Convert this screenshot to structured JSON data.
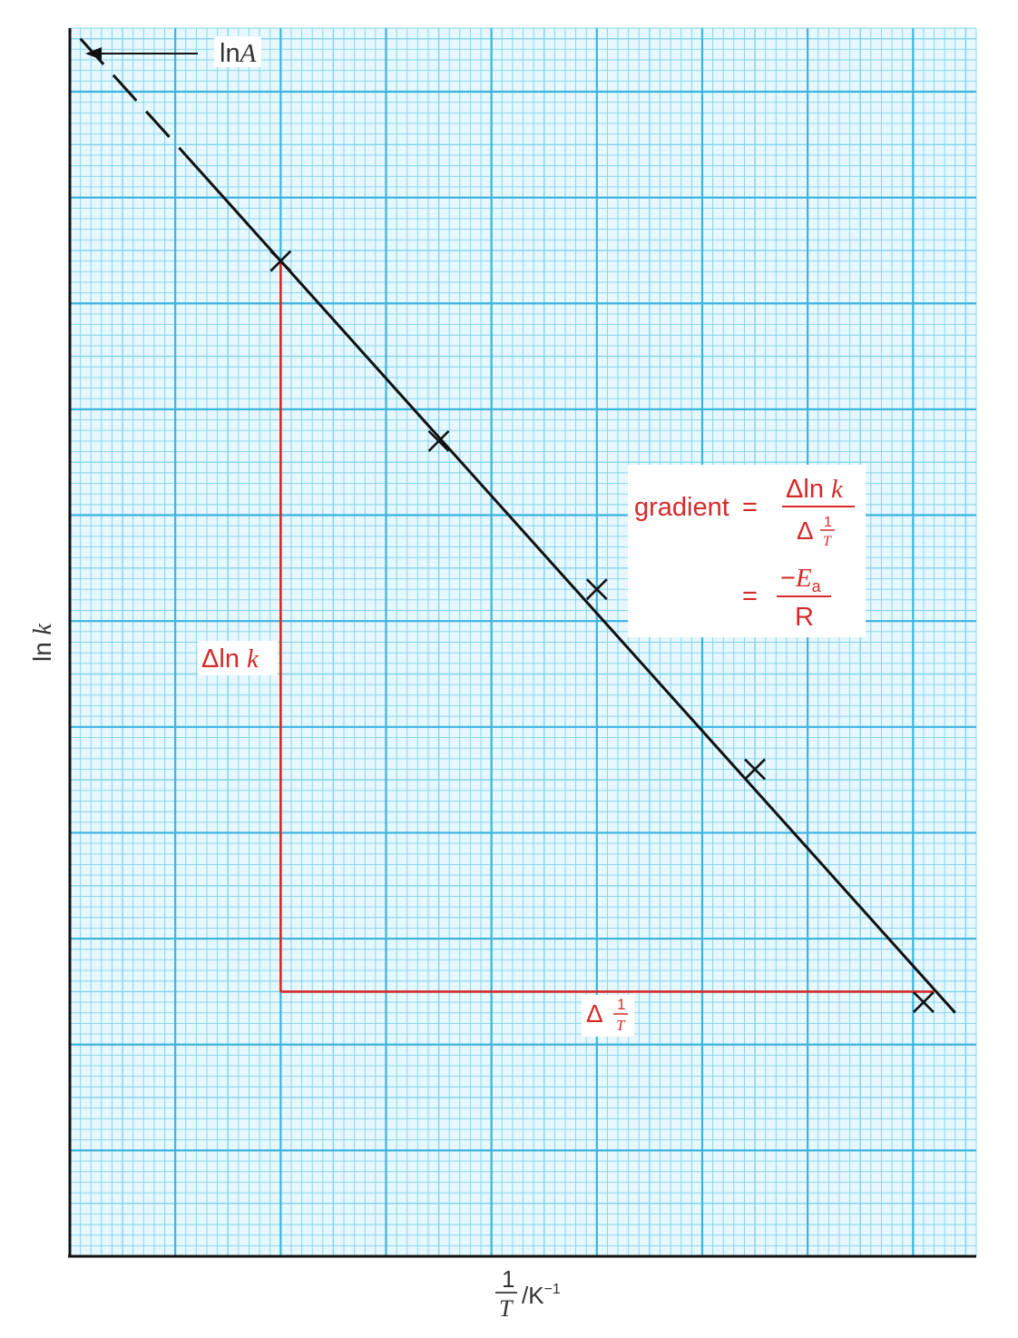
{
  "chart_data": {
    "type": "scatter",
    "title": "",
    "xlabel": "1/T /K⁻¹",
    "ylabel": "ln k",
    "xlabel_parts": {
      "num": "1",
      "den": "T",
      "unit": "/K",
      "exp": "−1"
    },
    "ylabel_parts": {
      "pre": "ln",
      "var": "k"
    },
    "xlim": [
      0,
      8.6
    ],
    "ylim": [
      0,
      11.6
    ],
    "grid": true,
    "tick_labels": "none",
    "colors": {
      "grid_minor": "#7fd3ee",
      "grid_major": "#3bb4e0",
      "paper": "#e6f7fd",
      "line": "#111111",
      "construction": "#d42a2a",
      "annotation_text": "#d42a2a"
    },
    "points": [
      {
        "x": 2.0,
        "y": 9.4
      },
      {
        "x": 3.5,
        "y": 7.7
      },
      {
        "x": 5.0,
        "y": 6.3
      },
      {
        "x": 6.5,
        "y": 4.6
      },
      {
        "x": 8.1,
        "y": 2.4
      }
    ],
    "best_fit": {
      "x": [
        0.1,
        8.4
      ],
      "y": [
        11.5,
        2.3
      ]
    },
    "extrapolation": {
      "style": "dashed",
      "x": [
        0.1,
        1.1
      ],
      "y": [
        11.5,
        10.4
      ]
    },
    "intercept_label": {
      "pre": "ln",
      "var": "A"
    },
    "construction": {
      "x0": 2.0,
      "x1": 8.2,
      "y0": 2.5,
      "y1": 9.4
    },
    "annotations": {
      "delta_lnk": {
        "delta": "Δ",
        "ln": "ln ",
        "var": "k"
      },
      "delta_inv_t": {
        "delta": "Δ",
        "num": "1",
        "den": "T"
      },
      "gradient_box": {
        "lhs": "gradient",
        "eq": "=",
        "frac1_num": {
          "delta": "Δ",
          "ln": "ln ",
          "var": "k"
        },
        "frac1_den": {
          "delta": "Δ",
          "num": "1",
          "den": "T"
        },
        "frac2_num": {
          "minus": "−",
          "var": "E",
          "sub": "a"
        },
        "frac2_den": "R"
      }
    }
  }
}
